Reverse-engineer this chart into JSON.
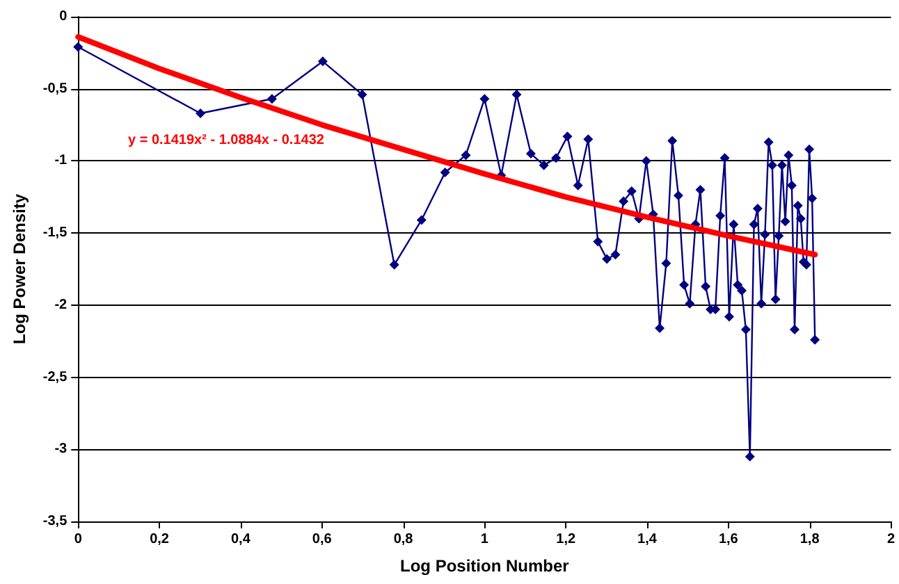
{
  "chart_data": {
    "type": "line",
    "xlabel": "Log Position Number",
    "ylabel": "Log Power Density",
    "annotations": [
      "y = 0.1419x² - 1.0884x - 0.1432"
    ],
    "xlim": [
      0,
      2
    ],
    "xticks": [
      0,
      {
        "value": 0.2,
        "label": "0,2"
      },
      {
        "value": 0.4,
        "label": "0,4"
      },
      {
        "value": 0.6,
        "label": "0,6"
      },
      {
        "value": 0.8,
        "label": "0,8"
      },
      1,
      {
        "value": 1.2,
        "label": "1,2"
      },
      {
        "value": 1.4,
        "label": "1,4"
      },
      {
        "value": 1.6,
        "label": "1,6"
      },
      {
        "value": 1.8,
        "label": "1,8"
      },
      2
    ],
    "ylim": [
      -3.5,
      0
    ],
    "yticks": [
      {
        "value": -3.5,
        "label": "-3,5"
      },
      -3,
      {
        "value": -2.5,
        "label": "-2,5"
      },
      -2,
      {
        "value": -1.5,
        "label": "-1,5"
      },
      -1,
      {
        "value": -0.5,
        "label": "-0,5"
      },
      0
    ],
    "grid": "y",
    "series": [
      {
        "color": "#000080",
        "marker": "diamond",
        "line_style": "solid",
        "x": [
          0,
          0.301,
          0.477,
          0.602,
          0.699,
          0.778,
          0.845,
          0.903,
          0.954,
          1,
          1.041,
          1.079,
          1.114,
          1.146,
          1.176,
          1.204,
          1.23,
          1.255,
          1.279,
          1.301,
          1.322,
          1.342,
          1.362,
          1.38,
          1.398,
          1.415,
          1.431,
          1.447,
          1.462,
          1.477,
          1.491,
          1.505,
          1.519,
          1.531,
          1.544,
          1.556,
          1.568,
          1.58,
          1.591,
          1.602,
          1.613,
          1.623,
          1.633,
          1.643,
          1.653,
          1.663,
          1.672,
          1.681,
          1.69,
          1.699,
          1.708,
          1.716,
          1.724,
          1.732,
          1.74,
          1.748,
          1.756,
          1.763,
          1.771,
          1.778,
          1.785,
          1.792,
          1.799,
          1.806,
          1.813
        ],
        "values": [
          -0.21,
          -0.67,
          -0.57,
          -0.31,
          -0.54,
          -1.72,
          -1.41,
          -1.08,
          -0.96,
          -0.57,
          -1.1,
          -0.54,
          -0.95,
          -1.03,
          -0.98,
          -0.83,
          -1.17,
          -0.85,
          -1.56,
          -1.68,
          -1.65,
          -1.28,
          -1.21,
          -1.4,
          -1,
          -1.37,
          -2.16,
          -1.71,
          -0.86,
          -1.24,
          -1.86,
          -1.99,
          -1.44,
          -1.2,
          -1.87,
          -2.03,
          -2.03,
          -1.38,
          -0.98,
          -2.08,
          -1.44,
          -1.86,
          -1.9,
          -2.17,
          -3.05,
          -1.44,
          -1.33,
          -1.99,
          -1.51,
          -0.87,
          -1.03,
          -1.96,
          -1.52,
          -1.03,
          -1.42,
          -0.96,
          -1.17,
          -2.17,
          -1.31,
          -1.4,
          -1.7,
          -1.72,
          -0.92,
          -1.26,
          -2.24
        ]
      },
      {
        "type": "line",
        "color": "#ff0000",
        "marker": "none",
        "line_style": "solid",
        "x": [
          0,
          0.2,
          0.4,
          0.6,
          0.8,
          1,
          1.2,
          1.4,
          1.6,
          1.813
        ],
        "values": [
          -0.14,
          -0.36,
          -0.56,
          -0.75,
          -0.92,
          -1.09,
          -1.25,
          -1.39,
          -1.52,
          -1.65
        ]
      }
    ]
  }
}
